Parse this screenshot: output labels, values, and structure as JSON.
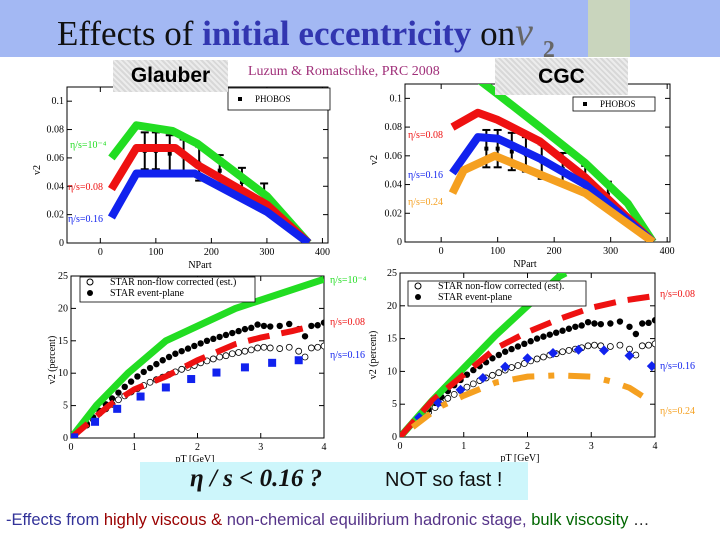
{
  "title": {
    "prefix": "Effects of ",
    "highlight": "initial eccentricity",
    "suffix": " on",
    "symbol": "v",
    "subscript": "2"
  },
  "labels": {
    "glauber": "Glauber",
    "cgc": "CGC",
    "reference": "Luzum & Romatschke, PRC 2008"
  },
  "conclusion": {
    "eta_text": "η / s < 0.16 ?",
    "not_so_fast": "NOT so fast !"
  },
  "footer": [
    {
      "text": "-Effects from ",
      "color": "#333399"
    },
    {
      "text": "highly viscous & ",
      "color": "#990000"
    },
    {
      "text": "non-chemical equilibrium hadronic stage, ",
      "color": "#553388"
    },
    {
      "text": "bulk viscosity",
      "color": "#006600"
    },
    {
      "text": " …",
      "color": "#222222"
    }
  ],
  "chart_data": [
    {
      "type": "line",
      "panel": "Glauber v2 vs NPart",
      "xlabel": "NPart",
      "ylabel": "v2",
      "xlim": [
        -60,
        410
      ],
      "ylim": [
        0,
        0.11
      ],
      "xticks": [
        0,
        100,
        200,
        300,
        400
      ],
      "yticks": [
        0,
        0.02,
        0.04,
        0.06,
        0.08,
        0.1
      ],
      "ytick_labels": [
        "0",
        "0.02",
        "0.04",
        "0.06",
        "0.08",
        "0.1"
      ],
      "series": [
        {
          "name": "η/s=10⁻⁴",
          "color": "#22dd22",
          "style": "band",
          "x": [
            20,
            65,
            130,
            175,
            300,
            375
          ],
          "y": [
            0.06,
            0.083,
            0.079,
            0.07,
            0.033,
            0
          ]
        },
        {
          "name": "η/s=0.08",
          "color": "#ee1111",
          "style": "band",
          "x": [
            20,
            65,
            135,
            175,
            300,
            375
          ],
          "y": [
            0.038,
            0.067,
            0.067,
            0.055,
            0.027,
            0
          ]
        },
        {
          "name": "η/s=0.16",
          "color": "#1122ee",
          "style": "band",
          "x": [
            20,
            65,
            170,
            300,
            375
          ],
          "y": [
            0.018,
            0.049,
            0.049,
            0.022,
            0
          ]
        }
      ],
      "data": [
        {
          "name": "PHOBOS",
          "marker": "square-errorbar",
          "color": "#000000",
          "x": [
            80,
            100,
            125,
            150,
            178,
            215,
            255,
            295
          ],
          "y": [
            0.065,
            0.065,
            0.063,
            0.061,
            0.056,
            0.051,
            0.043,
            0.033
          ],
          "err": [
            0.013,
            0.013,
            0.013,
            0.012,
            0.012,
            0.011,
            0.01,
            0.009
          ]
        }
      ],
      "legend": [
        "PHOBOS"
      ]
    },
    {
      "type": "line",
      "panel": "CGC v2 vs NPart",
      "xlabel": "NPart",
      "ylabel": "v2",
      "xlim": [
        -64,
        405
      ],
      "ylim": [
        0,
        0.11
      ],
      "xticks": [
        0,
        100,
        200,
        300,
        400
      ],
      "yticks": [
        0,
        0.02,
        0.04,
        0.06,
        0.08,
        0.1
      ],
      "ytick_labels": [
        "0",
        "0.02",
        "0.04",
        "0.06",
        "0.08",
        "0.1"
      ],
      "series": [
        {
          "name": "",
          "color": "#22dd22",
          "style": "band",
          "x": [
            60,
            100,
            175,
            255,
            330,
            375
          ],
          "y": [
            0.115,
            0.103,
            0.08,
            0.055,
            0.027,
            0
          ]
        },
        {
          "name": "η/s=0.08",
          "color": "#ee1111",
          "style": "band",
          "x": [
            20,
            65,
            100,
            175,
            255,
            375
          ],
          "y": [
            0.08,
            0.09,
            0.085,
            0.07,
            0.045,
            0
          ]
        },
        {
          "name": "η/s=0.16",
          "color": "#1122ee",
          "style": "band",
          "x": [
            20,
            65,
            100,
            175,
            255,
            375
          ],
          "y": [
            0.048,
            0.073,
            0.072,
            0.058,
            0.04,
            0
          ]
        },
        {
          "name": "η/s=0.24",
          "color": "#f5a020",
          "style": "band",
          "x": [
            20,
            40,
            95,
            175,
            255,
            375
          ],
          "y": [
            0.034,
            0.05,
            0.06,
            0.047,
            0.034,
            0
          ]
        }
      ],
      "data": [
        {
          "name": "PHOBOS",
          "marker": "square-errorbar",
          "color": "#000000",
          "x": [
            80,
            100,
            125,
            150,
            178,
            215,
            255,
            295
          ],
          "y": [
            0.065,
            0.065,
            0.063,
            0.061,
            0.056,
            0.051,
            0.043,
            0.033
          ],
          "err": [
            0.013,
            0.013,
            0.013,
            0.012,
            0.012,
            0.011,
            0.01,
            0.009
          ]
        }
      ],
      "legend": [
        "PHOBOS"
      ]
    },
    {
      "type": "line",
      "panel": "Glauber v2 vs pT",
      "xlabel": "pT [GeV]",
      "ylabel": "v2 (percent)",
      "xlim": [
        0,
        4
      ],
      "ylim": [
        0,
        25
      ],
      "xticks": [
        0,
        1,
        2,
        3,
        4
      ],
      "yticks": [
        0,
        5,
        10,
        15,
        20,
        25
      ],
      "ytick_labels": [
        "0",
        "5",
        "10",
        "15",
        "20",
        "25"
      ],
      "series": [
        {
          "name": "η/s=10⁻⁴",
          "color": "#22dd22",
          "style": "band",
          "x": [
            0,
            0.4,
            0.9,
            1.5,
            2.6,
            4
          ],
          "y": [
            0,
            5,
            10,
            15,
            20,
            24.5
          ]
        },
        {
          "name": "η/s=0.08",
          "color": "#ee1111",
          "style": "dashed",
          "x": [
            0,
            0.6,
            1,
            1.5,
            2,
            2.6,
            3,
            3.5,
            3.7
          ],
          "y": [
            0,
            5,
            7.5,
            9.5,
            12,
            14.5,
            15.5,
            16.5,
            17
          ]
        },
        {
          "name": "η/s=0.16",
          "color": "#1122ee",
          "style": "squares",
          "x": [
            0.05,
            0.38,
            0.73,
            1.1,
            1.5,
            1.9,
            2.3,
            2.75,
            3.18,
            3.6
          ],
          "y": [
            0.1,
            2.5,
            4.5,
            6.4,
            7.8,
            9.1,
            10.1,
            10.9,
            11.6,
            12
          ]
        }
      ],
      "data": [
        {
          "name": "STAR non-flow corrected (est.)",
          "marker": "open-circle",
          "color": "#000000",
          "x": [
            0.25,
            0.35,
            0.45,
            0.55,
            0.65,
            0.75,
            0.85,
            0.95,
            1.05,
            1.15,
            1.25,
            1.35,
            1.45,
            1.55,
            1.65,
            1.75,
            1.85,
            1.95,
            2.05,
            2.15,
            2.25,
            2.35,
            2.45,
            2.55,
            2.65,
            2.75,
            2.85,
            2.95,
            3.05,
            3.15,
            3.3,
            3.45,
            3.6,
            3.7,
            3.8,
            3.9,
            4.0
          ],
          "y": [
            2,
            2.9,
            3.8,
            4.5,
            5.2,
            5.9,
            6.5,
            7.1,
            7.6,
            8.1,
            8.6,
            9,
            9.4,
            9.8,
            10.2,
            10.6,
            10.9,
            11.2,
            11.6,
            11.9,
            12.2,
            12.5,
            12.7,
            13,
            13.2,
            13.4,
            13.6,
            13.9,
            14,
            13.9,
            13.8,
            14,
            13.4,
            12.5,
            13.9,
            14,
            14.2
          ]
        },
        {
          "name": "STAR event-plane",
          "marker": "filled-circle",
          "color": "#000000",
          "x": [
            0.25,
            0.35,
            0.45,
            0.55,
            0.65,
            0.75,
            0.85,
            0.95,
            1.05,
            1.15,
            1.25,
            1.35,
            1.45,
            1.55,
            1.65,
            1.75,
            1.85,
            1.95,
            2.05,
            2.15,
            2.25,
            2.35,
            2.45,
            2.55,
            2.65,
            2.75,
            2.85,
            2.95,
            3.05,
            3.15,
            3.3,
            3.45,
            3.6,
            3.7,
            3.8,
            3.9,
            4.0
          ],
          "y": [
            2.2,
            3.2,
            4.2,
            5.2,
            6.1,
            7,
            7.9,
            8.7,
            9.5,
            10.2,
            10.8,
            11.4,
            12,
            12.5,
            13,
            13.4,
            13.8,
            14.2,
            14.6,
            15,
            15.3,
            15.6,
            15.9,
            16.2,
            16.5,
            16.8,
            17,
            17.5,
            17.3,
            17.2,
            17.3,
            17.6,
            16.8,
            15.7,
            17.3,
            17.4,
            17.8
          ]
        }
      ],
      "legend": [
        "STAR non-flow corrected (est.)",
        "STAR event-plane"
      ]
    },
    {
      "type": "line",
      "panel": "CGC v2 vs pT",
      "xlabel": "pT [GeV]",
      "ylabel": "v2 (percent)",
      "xlim": [
        0,
        4
      ],
      "ylim": [
        0,
        25
      ],
      "xticks": [
        0,
        1,
        2,
        3,
        4
      ],
      "yticks": [
        0,
        5,
        10,
        15,
        20,
        25
      ],
      "ytick_labels": [
        "0",
        "5",
        "10",
        "15",
        "20",
        "25"
      ],
      "series": [
        {
          "name": "",
          "color": "#22dd22",
          "style": "band",
          "x": [
            0,
            0.5,
            1,
            1.5,
            2,
            2.5,
            2.6
          ],
          "y": [
            0,
            5.5,
            10.5,
            15.5,
            20,
            24.5,
            25
          ]
        },
        {
          "name": "η/s=0.08",
          "color": "#ee1111",
          "style": "dashed",
          "x": [
            0,
            0.5,
            1,
            1.5,
            2,
            2.5,
            3,
            3.5,
            4
          ],
          "y": [
            0,
            5.5,
            9.5,
            13.5,
            16,
            18,
            19.7,
            20.8,
            21.5
          ]
        },
        {
          "name": "η/s=0.16",
          "color": "#1122ee",
          "style": "stars",
          "x": [
            0.3,
            0.6,
            0.95,
            1.3,
            1.65,
            2,
            2.4,
            2.8,
            3.2,
            3.6,
            3.95
          ],
          "y": [
            3,
            5.2,
            7.2,
            9,
            10.7,
            12,
            12.8,
            13.3,
            13.2,
            12.4,
            10.8
          ]
        },
        {
          "name": "η/s=0.24",
          "color": "#f5a020",
          "style": "dashdot",
          "x": [
            0.2,
            0.6,
            1,
            1.5,
            2,
            2.5,
            3,
            3.3,
            3.6,
            3.95
          ],
          "y": [
            1.5,
            4.5,
            6.3,
            8.3,
            9.2,
            9.4,
            9.2,
            8.5,
            7.5,
            5.3
          ]
        }
      ],
      "data": [
        {
          "name": "STAR non-flow corrected (est).",
          "marker": "open-circle",
          "color": "#000000",
          "x": [
            0.25,
            0.35,
            0.45,
            0.55,
            0.65,
            0.75,
            0.85,
            0.95,
            1.05,
            1.15,
            1.25,
            1.35,
            1.45,
            1.55,
            1.65,
            1.75,
            1.85,
            1.95,
            2.05,
            2.15,
            2.25,
            2.35,
            2.45,
            2.55,
            2.65,
            2.75,
            2.85,
            2.95,
            3.05,
            3.15,
            3.3,
            3.45,
            3.6,
            3.7,
            3.8,
            3.9,
            4.0
          ],
          "y": [
            2,
            2.9,
            3.8,
            4.5,
            5.2,
            5.9,
            6.5,
            7.1,
            7.6,
            8.1,
            8.6,
            9,
            9.4,
            9.8,
            10.2,
            10.6,
            10.9,
            11.2,
            11.6,
            11.9,
            12.2,
            12.5,
            12.7,
            13,
            13.2,
            13.4,
            13.6,
            13.9,
            14,
            13.9,
            13.8,
            14,
            13.4,
            12.5,
            13.9,
            14,
            14.2
          ]
        },
        {
          "name": "STAR event-plane",
          "marker": "filled-circle",
          "color": "#000000",
          "x": [
            0.25,
            0.35,
            0.45,
            0.55,
            0.65,
            0.75,
            0.85,
            0.95,
            1.05,
            1.15,
            1.25,
            1.35,
            1.45,
            1.55,
            1.65,
            1.75,
            1.85,
            1.95,
            2.05,
            2.15,
            2.25,
            2.35,
            2.45,
            2.55,
            2.65,
            2.75,
            2.85,
            2.95,
            3.05,
            3.15,
            3.3,
            3.45,
            3.6,
            3.7,
            3.8,
            3.9,
            4.0
          ],
          "y": [
            2.2,
            3.2,
            4.2,
            5.2,
            6.1,
            7,
            7.9,
            8.7,
            9.5,
            10.2,
            10.8,
            11.4,
            12,
            12.5,
            13,
            13.4,
            13.8,
            14.2,
            14.6,
            15,
            15.3,
            15.6,
            15.9,
            16.2,
            16.5,
            16.8,
            17,
            17.5,
            17.3,
            17.2,
            17.3,
            17.6,
            16.8,
            15.7,
            17.3,
            17.4,
            17.8
          ]
        }
      ],
      "legend": [
        "STAR non-flow corrected (est).",
        "STAR event-plane"
      ]
    }
  ]
}
